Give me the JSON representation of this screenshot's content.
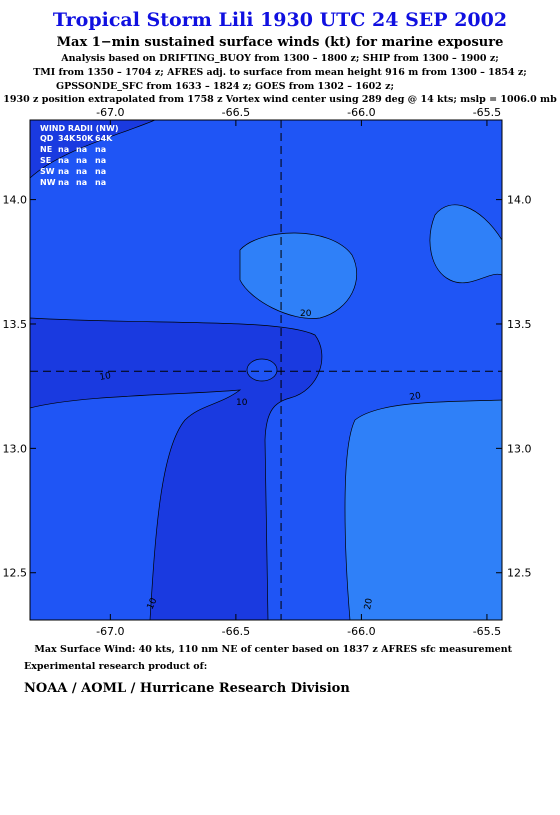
{
  "header": {
    "title": "Tropical Storm Lili 1930 UTC 24 SEP 2002",
    "subtitle": "Max 1−min sustained surface winds (kt) for marine exposure",
    "notes": [
      "Analysis based on  DRIFTING_BUOY from 1300 – 1800 z;  SHIP from 1300 – 1900 z;",
      "TMI from 1350 – 1704 z;  AFRES adj. to surface from mean height 916 m from 1300 – 1854 z;",
      "GPSSONDE_SFC from 1633 – 1824 z;  GOES from 1302 – 1602 z;",
      "1930 z position extrapolated from 1758 z Vortex wind center using 289 deg @ 14 kts; mslp = 1006.0 mb"
    ]
  },
  "axes": {
    "xlim": [
      -67.32,
      -65.44
    ],
    "ylim": [
      12.31,
      14.32
    ],
    "xticks": [
      {
        "value": -67,
        "label": "-67.0"
      },
      {
        "value": -66.5,
        "label": "-66.5"
      },
      {
        "value": -66,
        "label": "-66.0"
      },
      {
        "value": -65.5,
        "label": "-65.5"
      }
    ],
    "yticks": [
      {
        "value": 14,
        "label": "14.0"
      },
      13.5,
      {
        "value": 13,
        "label": "13.0"
      },
      12.5
    ]
  },
  "center": {
    "lon": -66.32,
    "lat": 13.31
  },
  "radii_table": {
    "title": "WIND RADII (NW)",
    "header": [
      "QD",
      "34K",
      "50K",
      "64K"
    ],
    "rows": [
      [
        "NE",
        "na",
        "na",
        "na"
      ],
      [
        "SE",
        "na",
        "na",
        "na"
      ],
      [
        "SW",
        "na",
        "na",
        "na"
      ],
      [
        "NW",
        "na",
        "na",
        "na"
      ]
    ]
  },
  "contour_labels": [
    "20",
    "10",
    "10",
    "20",
    "10",
    "20"
  ],
  "footer": {
    "max_wind": "Max Surface Wind: 40 kts, 110 nm NE of center based on 1837 z AFRES sfc measurement",
    "product": "Experimental research product of:",
    "org": "NOAA / AOML / Hurricane Research Division"
  }
}
